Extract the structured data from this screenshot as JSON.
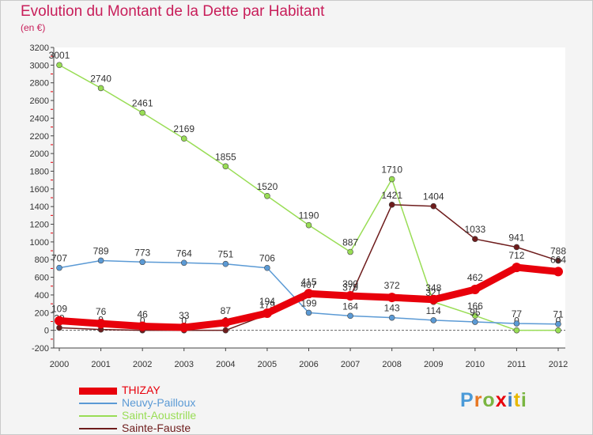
{
  "header": {
    "title": "Evolution du Montant de la Dette par Habitant",
    "subtitle": "(en €)"
  },
  "colors": {
    "title": "#c81e5a",
    "THIZAY": "#e8000b",
    "Neuvy-Pailloux": "#5b9ad5",
    "Saint-Aoustrille": "#99dd55",
    "Sainte-Fauste": "#6e1c1c"
  },
  "chart_data": {
    "type": "line",
    "x": [
      "2000",
      "2001",
      "2002",
      "2003",
      "2004",
      "2005",
      "2006",
      "2007",
      "2008",
      "2009",
      "2010",
      "2011",
      "2012"
    ],
    "yticks": [
      -200,
      0,
      200,
      400,
      600,
      800,
      1000,
      1200,
      1400,
      1600,
      1800,
      2000,
      2200,
      2400,
      2600,
      2800,
      3000,
      3200
    ],
    "ylim": [
      -200,
      3200
    ],
    "grid": false,
    "legend_position": "bottom-left",
    "series": [
      {
        "name": "Saint-Aoustrille",
        "values": [
          3001,
          2740,
          2461,
          2169,
          1855,
          1520,
          1190,
          887,
          1710,
          321,
          166,
          0,
          0
        ]
      },
      {
        "name": "Neuvy-Pailloux",
        "values": [
          707,
          789,
          773,
          764,
          751,
          706,
          199,
          164,
          143,
          114,
          95,
          77,
          71
        ]
      },
      {
        "name": "Sainte-Fauste",
        "values": [
          29,
          9,
          0,
          0,
          0,
          179,
          407,
          379,
          1421,
          1404,
          1033,
          941,
          788
        ]
      },
      {
        "name": "THIZAY",
        "values": [
          109,
          76,
          46,
          33,
          87,
          194,
          415,
          390,
          372,
          348,
          462,
          712,
          664
        ]
      }
    ]
  },
  "legend": {
    "items": [
      "THIZAY",
      "Neuvy-Pailloux",
      "Saint-Aoustrille",
      "Sainte-Fauste"
    ]
  },
  "logo": {
    "text": "Proxiti",
    "letter_colors": [
      "#4a9ad8",
      "#e87722",
      "#7ab541",
      "#e8000b",
      "#3a7fc4",
      "#e8b800",
      "#7ab541"
    ]
  }
}
